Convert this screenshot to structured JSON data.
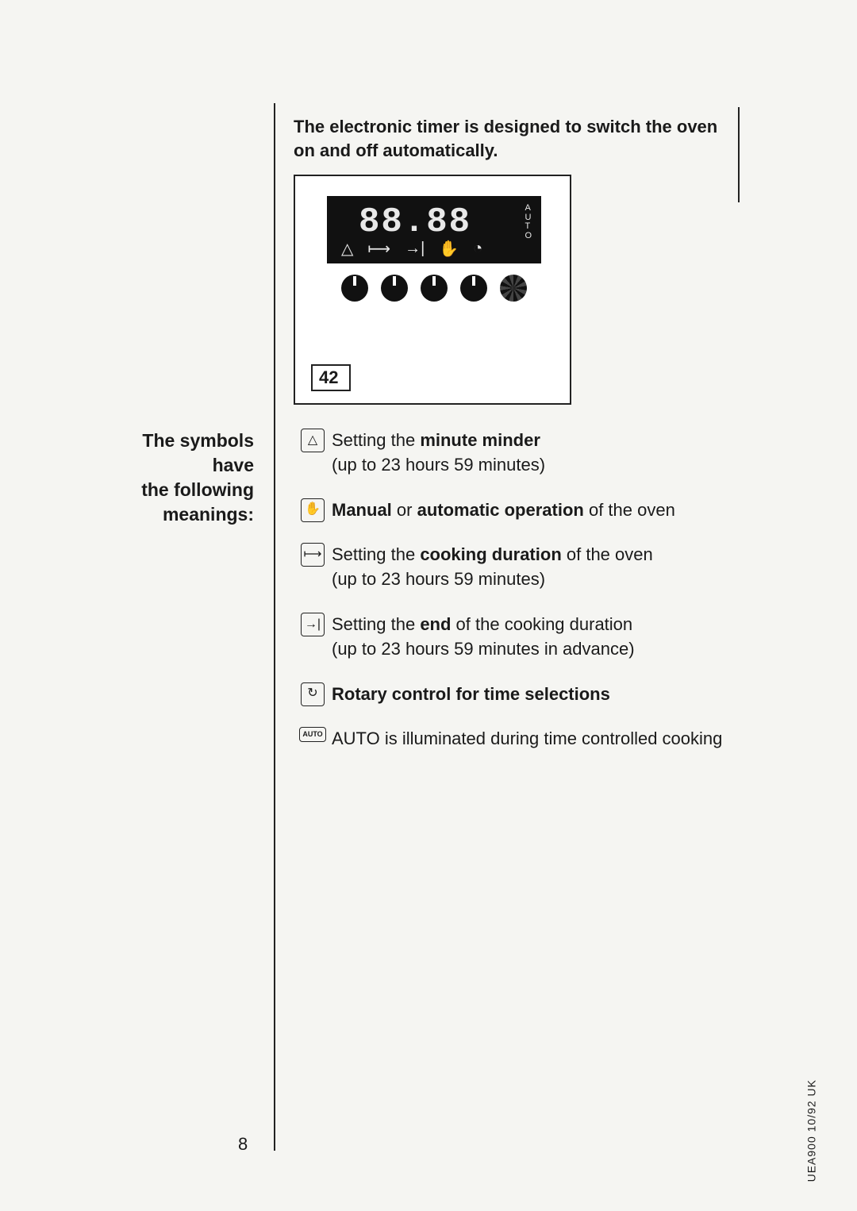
{
  "intro": "The electronic timer is designed to switch the oven on and off automatically.",
  "figure": {
    "segment": "88.88",
    "auto_label": "AUTO",
    "number": "42"
  },
  "side_heading": {
    "l1": "The symbols",
    "l2": "have",
    "l3": "the following",
    "l4": "meanings:"
  },
  "rows": {
    "r1a": "Setting the ",
    "r1b": "minute minder",
    "r1c": "(up to 23 hours 59 minutes)",
    "r2a": "Manual",
    "r2b": " or ",
    "r2c": "automatic operation",
    "r2d": " of the oven",
    "r3a": "Setting the ",
    "r3b": "cooking duration",
    "r3c": " of the oven",
    "r3d": "(up to 23 hours 59 minutes)",
    "r4a": "Setting the ",
    "r4b": "end",
    "r4c": " of the cooking duration",
    "r4d": "(up to 23 hours 59 minutes in advance)",
    "r5": "Rotary control for time selections",
    "r6": "AUTO is illuminated during time controlled cooking"
  },
  "icons": {
    "bell": "△",
    "hand": "✋",
    "duration": "⟼",
    "end": "→|",
    "rotary": "↻",
    "auto": "AUTO"
  },
  "page_number": "8",
  "doc_id": "UEA900 10/92   UK"
}
